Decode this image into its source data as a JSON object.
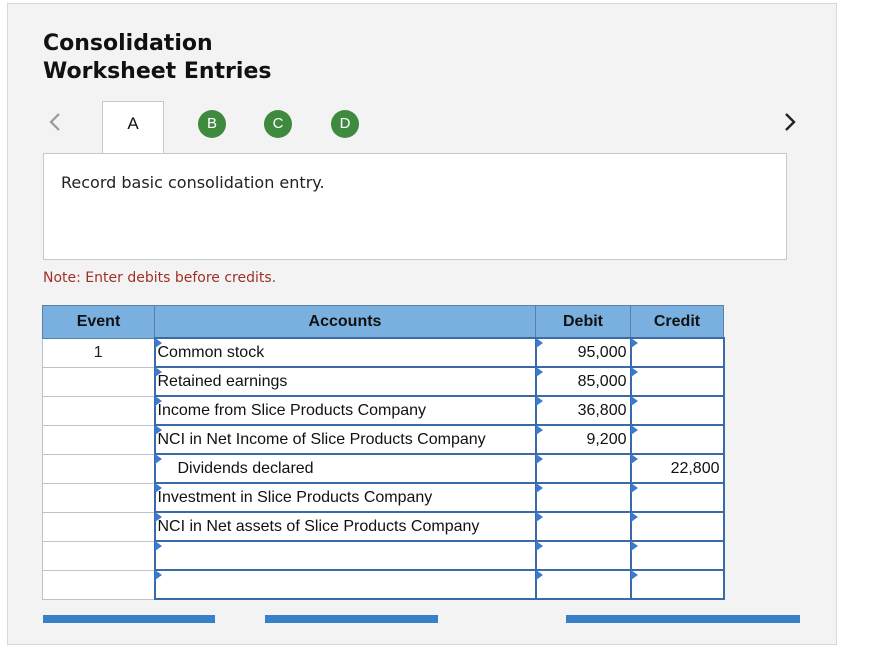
{
  "header": {
    "title_line1": "Consolidation",
    "title_line2": "Worksheet Entries"
  },
  "tabs": [
    {
      "label": "A",
      "state": "active"
    },
    {
      "label": "B",
      "state": "complete"
    },
    {
      "label": "C",
      "state": "complete"
    },
    {
      "label": "D",
      "state": "complete"
    }
  ],
  "instruction": "Record basic consolidation entry.",
  "note": "Note: Enter debits before credits.",
  "table": {
    "headers": {
      "event": "Event",
      "accounts": "Accounts",
      "debit": "Debit",
      "credit": "Credit"
    },
    "rows": [
      {
        "event": "1",
        "account": "Common stock",
        "debit": "95,000",
        "credit": ""
      },
      {
        "event": "",
        "account": "Retained earnings",
        "debit": "85,000",
        "credit": ""
      },
      {
        "event": "",
        "account": "Income from Slice Products Company",
        "debit": "36,800",
        "credit": ""
      },
      {
        "event": "",
        "account": "NCI in Net Income of Slice Products Company",
        "debit": "9,200",
        "credit": ""
      },
      {
        "event": "",
        "account": "Dividends declared",
        "debit": "",
        "credit": "22,800"
      },
      {
        "event": "",
        "account": "Investment in Slice Products Company",
        "debit": "",
        "credit": ""
      },
      {
        "event": "",
        "account": "NCI in Net assets of Slice Products Company",
        "debit": "",
        "credit": ""
      },
      {
        "event": "",
        "account": "",
        "debit": "",
        "credit": ""
      },
      {
        "event": "",
        "account": "",
        "debit": "",
        "credit": ""
      }
    ]
  },
  "colors": {
    "tab_complete": "#3f8a3f",
    "header_bg": "#7ab0e0",
    "note_text": "#a0302a",
    "button": "#3a80c8"
  },
  "icons": {
    "prev": "chevron-left-icon",
    "next": "chevron-right-icon"
  }
}
